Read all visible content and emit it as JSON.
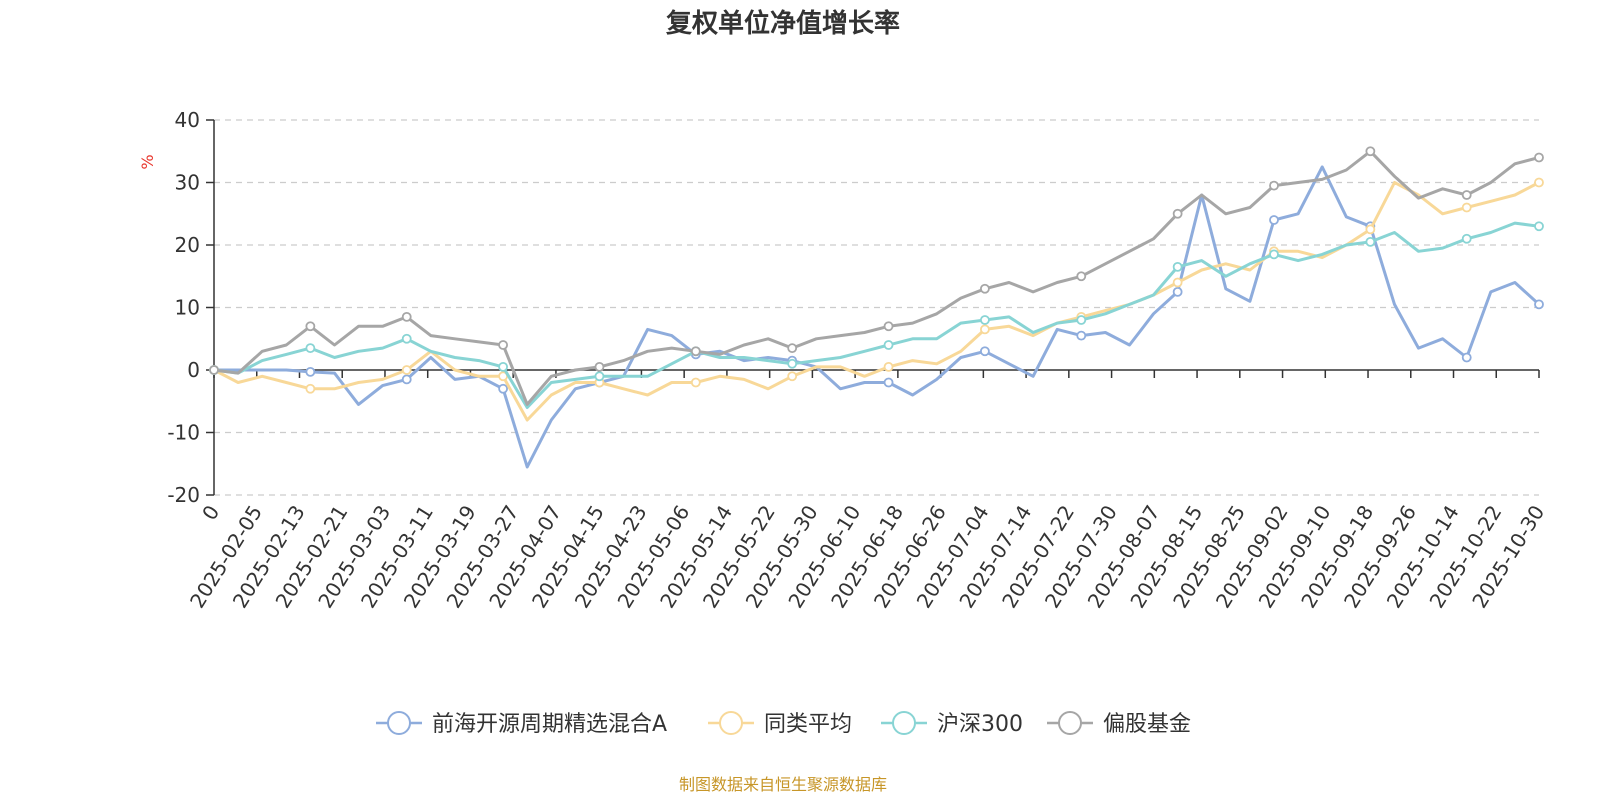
{
  "chart_data": {
    "type": "line",
    "title": "复权单位净值增长率",
    "y_unit": "%",
    "ylim": [
      -20,
      40
    ],
    "y_ticks": [
      -20,
      -10,
      0,
      10,
      20,
      30,
      40
    ],
    "grid": true,
    "legend_position": "bottom",
    "x_labels": [
      "0",
      "2025-02-05",
      "2025-02-13",
      "2025-02-21",
      "2025-03-03",
      "2025-03-11",
      "2025-03-19",
      "2025-03-27",
      "2025-04-07",
      "2025-04-15",
      "2025-04-23",
      "2025-05-06",
      "2025-05-14",
      "2025-05-22",
      "2025-05-30",
      "2025-06-10",
      "2025-06-18",
      "2025-06-26",
      "2025-07-04",
      "2025-07-14",
      "2025-07-22",
      "2025-07-30",
      "2025-08-07",
      "2025-08-15",
      "2025-08-25",
      "2025-09-02",
      "2025-09-10",
      "2025-09-18",
      "2025-09-26",
      "2025-10-14",
      "2025-10-22",
      "2025-10-30"
    ],
    "series": [
      {
        "name": "前海开源周期精选混合A",
        "color": "#8eacdc",
        "values": [
          0,
          0,
          0,
          0,
          -0.3,
          -0.5,
          -5.5,
          -2.5,
          -1.5,
          2,
          -1.5,
          -1,
          -3,
          -15.5,
          -8,
          -3,
          -2,
          -1,
          6.5,
          5.5,
          2.5,
          3,
          1.5,
          2,
          1.5,
          0.5,
          -3,
          -2,
          -2,
          -4,
          -1.5,
          2,
          3,
          1,
          -1,
          6.5,
          5.5,
          6,
          4,
          9,
          12.5,
          28,
          13,
          11,
          24,
          25,
          32.5,
          24.5,
          23,
          10.5,
          3.5,
          5,
          2,
          12.5,
          14,
          10.5
        ]
      },
      {
        "name": "同类平均",
        "color": "#f8d898",
        "values": [
          0,
          -2,
          -1,
          -2,
          -3,
          -3,
          -2,
          -1.5,
          0,
          3,
          0,
          -1,
          -1,
          -8,
          -4,
          -2,
          -2,
          -3,
          -4,
          -2,
          -2,
          -1,
          -1.5,
          -3,
          -1,
          0.5,
          0.5,
          -1,
          0.5,
          1.5,
          1,
          3,
          6.5,
          7,
          5.5,
          7.5,
          8.5,
          9.5,
          10.5,
          12,
          14,
          16,
          17,
          16,
          19,
          19,
          18,
          20,
          22.5,
          30,
          28,
          25,
          26,
          27,
          28,
          30
        ]
      },
      {
        "name": "沪深300",
        "color": "#88d4d4",
        "values": [
          0,
          -0.5,
          1.5,
          2.5,
          3.5,
          2,
          3,
          3.5,
          5,
          3,
          2,
          1.5,
          0.5,
          -6,
          -2,
          -1.5,
          -1,
          -1,
          -1,
          1,
          3,
          2,
          2,
          1.5,
          1,
          1.5,
          2,
          3,
          4,
          5,
          5,
          7.5,
          8,
          8.5,
          6,
          7.5,
          8,
          9,
          10.5,
          12,
          16.5,
          17.5,
          15,
          17,
          18.5,
          17.5,
          18.5,
          20,
          20.5,
          22,
          19,
          19.5,
          21,
          22,
          23.5,
          23
        ]
      },
      {
        "name": "偏股基金",
        "color": "#a6a6a6",
        "values": [
          0,
          -0.5,
          3,
          4,
          7,
          4,
          7,
          7,
          8.5,
          5.5,
          5,
          4.5,
          4,
          -5.5,
          -1,
          0,
          0.5,
          1.5,
          3,
          3.5,
          3,
          2.5,
          4,
          5,
          3.5,
          5,
          5.5,
          6,
          7,
          7.5,
          9,
          11.5,
          13,
          14,
          12.5,
          14,
          15,
          17,
          19,
          21,
          25,
          28,
          25,
          26,
          29.5,
          30,
          30.5,
          32,
          35,
          31,
          27.5,
          29,
          28,
          30,
          33,
          34
        ]
      }
    ]
  },
  "source_note": "制图数据来自恒生聚源数据库"
}
